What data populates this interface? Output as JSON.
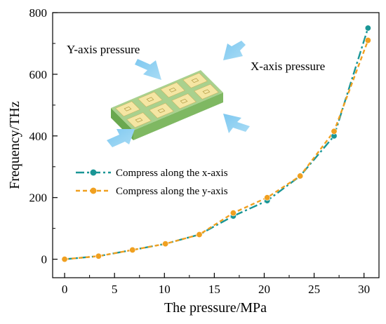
{
  "chart_data": {
    "type": "line",
    "xlabel": "The pressure/MPa",
    "ylabel": "Frequency/THz",
    "xlim": [
      -1.2,
      31.5
    ],
    "ylim": [
      -60,
      800
    ],
    "xticks": [
      0,
      5,
      10,
      15,
      20,
      25,
      30
    ],
    "yticks": [
      0,
      200,
      400,
      600,
      800
    ],
    "grid": false,
    "legend_position": "left",
    "series": [
      {
        "name": "Compress along the x-axis",
        "color": "#1a9696",
        "line_style": "dash-dot",
        "marker": "circle",
        "x": [
          0,
          3.4,
          6.8,
          10.1,
          13.5,
          16.9,
          20.3,
          23.6,
          27.0,
          30.4
        ],
        "y": [
          0,
          10,
          30,
          50,
          80,
          140,
          190,
          270,
          400,
          750
        ]
      },
      {
        "name": "Compress along the y-axis",
        "color": "#f0a020",
        "line_style": "dashed",
        "marker": "circle",
        "x": [
          0,
          3.4,
          6.8,
          10.1,
          13.5,
          16.9,
          20.3,
          23.6,
          27.0,
          30.4
        ],
        "y": [
          0,
          10,
          30,
          50,
          80,
          150,
          200,
          270,
          415,
          710
        ]
      }
    ],
    "annotations": [
      {
        "text": "Y-axis pressure"
      },
      {
        "text": "X-axis pressure"
      }
    ]
  }
}
